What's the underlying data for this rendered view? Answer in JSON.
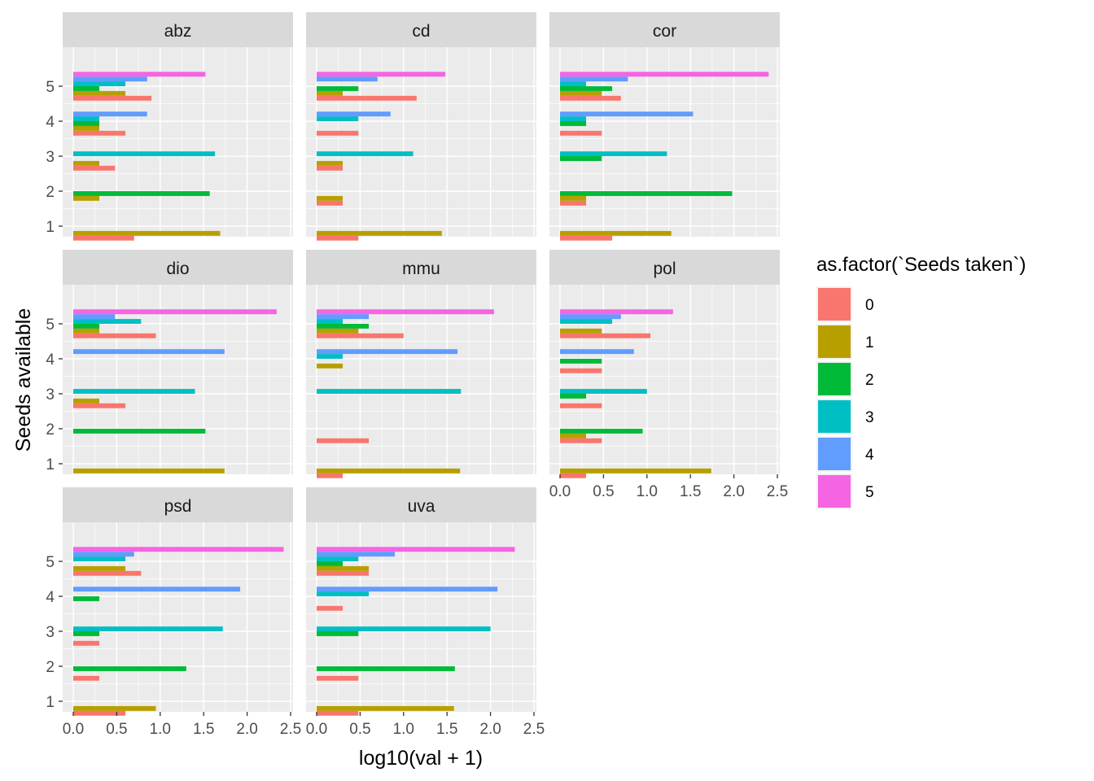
{
  "chart_data": {
    "type": "bar",
    "orientation": "horizontal",
    "xlabel": "log10(val + 1)",
    "ylabel": "Seeds available",
    "xlim": [
      0,
      2.5
    ],
    "xticks": [
      "0.0",
      "0.5",
      "1.0",
      "1.5",
      "2.0",
      "2.5"
    ],
    "categories": [
      "1",
      "2",
      "3",
      "4",
      "5"
    ],
    "grid": true,
    "legend": {
      "title": "as.factor(`Seeds taken`)",
      "position": "right",
      "entries": [
        {
          "label": "0",
          "color": "#F8766D"
        },
        {
          "label": "1",
          "color": "#B79F00"
        },
        {
          "label": "2",
          "color": "#00BA38"
        },
        {
          "label": "3",
          "color": "#00BFC4"
        },
        {
          "label": "4",
          "color": "#619CFF"
        },
        {
          "label": "5",
          "color": "#F564E3"
        }
      ]
    },
    "panels": [
      {
        "name": "abz",
        "bars": {
          "1": [
            0.7,
            1.69,
            null,
            null,
            null,
            null
          ],
          "2": [
            null,
            0.3,
            1.57,
            null,
            null,
            null
          ],
          "3": [
            0.48,
            0.3,
            null,
            1.63,
            null,
            null
          ],
          "4": [
            0.6,
            0.3,
            0.3,
            0.3,
            0.85,
            null
          ],
          "5": [
            0.9,
            0.6,
            0.3,
            0.6,
            0.85,
            1.52
          ]
        }
      },
      {
        "name": "cd",
        "bars": {
          "1": [
            0.48,
            1.44,
            null,
            null,
            null,
            null
          ],
          "2": [
            0.3,
            0.3,
            null,
            null,
            null,
            null
          ],
          "3": [
            0.3,
            0.3,
            null,
            1.11,
            null,
            null
          ],
          "4": [
            0.48,
            null,
            null,
            0.48,
            0.85,
            null
          ],
          "5": [
            1.15,
            0.3,
            0.48,
            null,
            0.7,
            1.48
          ]
        }
      },
      {
        "name": "cor",
        "bars": {
          "1": [
            0.6,
            1.28,
            null,
            null,
            null,
            null
          ],
          "2": [
            0.3,
            0.3,
            1.98,
            null,
            null,
            null
          ],
          "3": [
            null,
            null,
            0.48,
            1.23,
            null,
            null
          ],
          "4": [
            0.48,
            null,
            0.3,
            0.3,
            1.53,
            null
          ],
          "5": [
            0.7,
            0.48,
            0.6,
            0.3,
            0.78,
            2.4
          ]
        }
      },
      {
        "name": "dio",
        "bars": {
          "1": [
            null,
            1.74,
            null,
            null,
            null,
            null
          ],
          "2": [
            null,
            null,
            1.52,
            null,
            null,
            null
          ],
          "3": [
            0.6,
            0.3,
            null,
            1.4,
            null,
            null
          ],
          "4": [
            null,
            null,
            null,
            null,
            1.74,
            null
          ],
          "5": [
            0.95,
            0.3,
            0.3,
            0.78,
            0.48,
            2.34
          ]
        }
      },
      {
        "name": "mmu",
        "bars": {
          "1": [
            0.3,
            1.65,
            null,
            null,
            null,
            null
          ],
          "2": [
            0.6,
            null,
            null,
            null,
            null,
            null
          ],
          "3": [
            null,
            null,
            null,
            1.66,
            null,
            null
          ],
          "4": [
            null,
            0.3,
            null,
            0.3,
            1.62,
            null
          ],
          "5": [
            1.0,
            0.48,
            0.6,
            0.3,
            0.6,
            2.04
          ]
        }
      },
      {
        "name": "pol",
        "bars": {
          "1": [
            0.3,
            1.74,
            null,
            null,
            null,
            null
          ],
          "2": [
            0.48,
            0.3,
            0.95,
            null,
            null,
            null
          ],
          "3": [
            0.48,
            null,
            0.3,
            1.0,
            null,
            null
          ],
          "4": [
            0.48,
            null,
            0.48,
            null,
            0.85,
            null
          ],
          "5": [
            1.04,
            0.48,
            null,
            0.6,
            0.7,
            1.3
          ]
        }
      },
      {
        "name": "psd",
        "bars": {
          "1": [
            0.6,
            0.95,
            null,
            null,
            null,
            null
          ],
          "2": [
            0.3,
            null,
            1.3,
            null,
            null,
            null
          ],
          "3": [
            0.3,
            null,
            0.3,
            1.72,
            null,
            null
          ],
          "4": [
            null,
            null,
            0.3,
            null,
            1.92,
            null
          ],
          "5": [
            0.78,
            0.6,
            null,
            0.6,
            0.7,
            2.42
          ]
        }
      },
      {
        "name": "uva",
        "bars": {
          "1": [
            0.48,
            1.58,
            null,
            null,
            null,
            null
          ],
          "2": [
            0.48,
            null,
            1.59,
            null,
            null,
            null
          ],
          "3": [
            null,
            null,
            0.48,
            2.0,
            null,
            null
          ],
          "4": [
            0.3,
            null,
            null,
            0.6,
            2.08,
            null
          ],
          "5": [
            0.6,
            0.6,
            0.3,
            0.48,
            0.9,
            2.28
          ]
        }
      }
    ]
  }
}
